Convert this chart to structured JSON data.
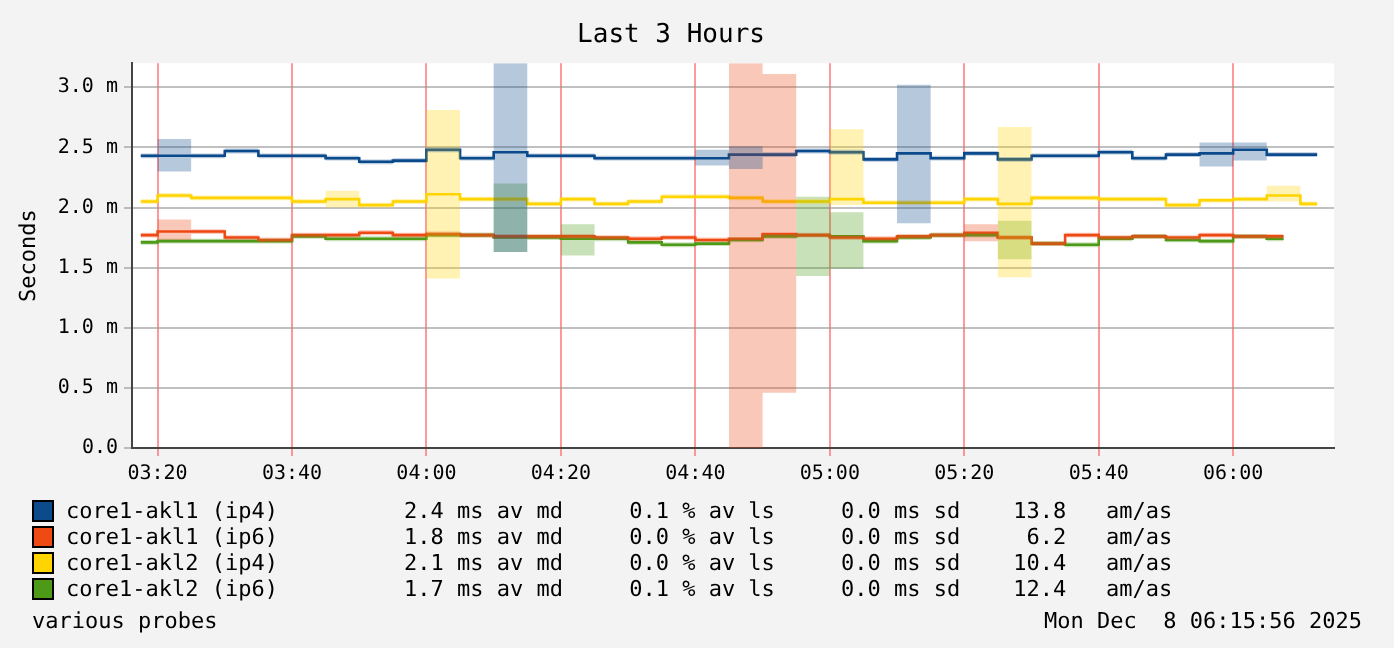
{
  "chart_data": {
    "type": "step",
    "title": "Last 3 Hours",
    "ylabel": "Seconds",
    "x": [
      3.2917,
      3.375,
      3.4583,
      3.5417,
      3.625,
      3.7083,
      3.7917,
      3.875,
      3.9583,
      4.0417,
      4.125,
      4.2083,
      4.2917,
      4.375,
      4.4583,
      4.5417,
      4.625,
      4.7083,
      4.7917,
      4.875,
      4.9583,
      5.0417,
      5.125,
      5.2083,
      5.2917,
      5.375,
      5.4583,
      5.5417,
      5.625,
      5.7083,
      5.7917,
      5.875,
      5.9583,
      6.0417,
      6.125,
      6.2083
    ],
    "xlim": [
      3.27,
      6.25
    ],
    "xticks": [
      {
        "value": 3.3333,
        "label": "03:20"
      },
      {
        "value": 3.6667,
        "label": "03:40"
      },
      {
        "value": 4,
        "label": "04:00"
      },
      {
        "value": 4.3333,
        "label": "04:20"
      },
      {
        "value": 4.6667,
        "label": "04:40"
      },
      {
        "value": 5,
        "label": "05:00"
      },
      {
        "value": 5.3333,
        "label": "05:20"
      },
      {
        "value": 5.6667,
        "label": "05:40"
      },
      {
        "value": 6,
        "label": "06:00"
      }
    ],
    "ylim": [
      0,
      3.2
    ],
    "yticks": [
      {
        "value": 0,
        "label": "0.0"
      },
      {
        "value": 0.5,
        "label": "0.5 m"
      },
      {
        "value": 1,
        "label": "1.0 m"
      },
      {
        "value": 1.5,
        "label": "1.5 m"
      },
      {
        "value": 2,
        "label": "2.0 m"
      },
      {
        "value": 2.5,
        "label": "2.5 m"
      },
      {
        "value": 3,
        "label": "3.0 m"
      }
    ],
    "grid": true,
    "marker": "none",
    "legend": "bottom",
    "series": [
      {
        "name": "core1-akl1 (ip4)",
        "color": "#0b4a8b",
        "values": [
          2.43,
          2.43,
          2.43,
          2.47,
          2.43,
          2.43,
          2.41,
          2.38,
          2.39,
          2.48,
          2.41,
          2.46,
          2.43,
          2.43,
          2.41,
          2.41,
          2.41,
          2.41,
          2.44,
          2.44,
          2.47,
          2.46,
          2.4,
          2.45,
          2.41,
          2.45,
          2.4,
          2.43,
          2.43,
          2.46,
          2.41,
          2.44,
          2.45,
          2.48,
          2.44,
          2.44
        ],
        "lower": [
          2.41,
          2.3,
          2.41,
          2.45,
          2.41,
          2.41,
          2.39,
          2.36,
          2.37,
          2.46,
          2.39,
          1.63,
          2.41,
          2.41,
          2.39,
          2.39,
          2.39,
          2.35,
          2.32,
          2.42,
          2.45,
          2.44,
          2.38,
          1.87,
          2.39,
          2.43,
          2.38,
          2.41,
          2.41,
          2.44,
          2.39,
          2.42,
          2.34,
          2.39,
          2.42,
          2.42
        ],
        "upper": [
          2.45,
          2.57,
          2.45,
          2.49,
          2.45,
          2.45,
          2.43,
          2.4,
          2.41,
          2.5,
          2.43,
          3.2,
          2.45,
          2.45,
          2.43,
          2.43,
          2.43,
          2.48,
          2.51,
          2.46,
          2.49,
          2.48,
          2.42,
          3.02,
          2.43,
          2.47,
          2.42,
          2.45,
          2.45,
          2.48,
          2.43,
          2.46,
          2.54,
          2.54,
          2.46,
          2.46
        ]
      },
      {
        "name": "core1-akl1 (ip6)",
        "color": "#f04a14",
        "values": [
          1.77,
          1.8,
          1.8,
          1.75,
          1.73,
          1.77,
          1.77,
          1.79,
          1.77,
          1.78,
          1.77,
          1.76,
          1.76,
          1.76,
          1.75,
          1.74,
          1.75,
          1.73,
          1.74,
          1.78,
          1.77,
          1.75,
          1.74,
          1.76,
          1.77,
          1.79,
          1.75,
          1.7,
          1.77,
          1.75,
          1.76,
          1.75,
          1.77,
          1.76,
          1.76,
          null
        ],
        "lower": [
          1.75,
          1.73,
          1.78,
          1.73,
          1.71,
          1.75,
          1.75,
          1.77,
          1.75,
          1.76,
          1.75,
          1.74,
          1.74,
          1.74,
          1.73,
          1.72,
          1.73,
          1.71,
          0,
          0.46,
          1.75,
          1.73,
          1.72,
          1.74,
          1.75,
          1.72,
          1.73,
          1.68,
          1.75,
          1.73,
          1.74,
          1.73,
          1.75,
          1.74,
          1.74,
          null
        ],
        "upper": [
          1.79,
          1.9,
          1.82,
          1.77,
          1.75,
          1.79,
          1.79,
          1.81,
          1.79,
          1.8,
          1.79,
          1.78,
          1.78,
          1.78,
          1.77,
          1.76,
          1.77,
          1.75,
          3.2,
          3.11,
          1.79,
          1.77,
          1.76,
          1.78,
          1.79,
          1.86,
          1.77,
          1.72,
          1.79,
          1.77,
          1.78,
          1.77,
          1.79,
          1.78,
          1.78,
          null
        ]
      },
      {
        "name": "core1-akl2 (ip4)",
        "color": "#ffd400",
        "values": [
          2.05,
          2.1,
          2.08,
          2.08,
          2.08,
          2.05,
          2.07,
          2.02,
          2.05,
          2.11,
          2.07,
          2.07,
          2.03,
          2.07,
          2.03,
          2.05,
          2.09,
          2.09,
          2.08,
          2.05,
          2.05,
          2.07,
          2.04,
          2.04,
          2.04,
          2.07,
          2.03,
          2.08,
          2.08,
          2.07,
          2.07,
          2.02,
          2.06,
          2.07,
          2.1,
          2.03
        ],
        "lower": [
          2.03,
          2.08,
          2.06,
          2.06,
          2.06,
          2.03,
          2.0,
          2.0,
          2.03,
          1.41,
          2.05,
          2.05,
          2.01,
          2.05,
          2.01,
          2.03,
          2.07,
          2.07,
          2.06,
          2.03,
          2.03,
          2.02,
          2.02,
          2.02,
          2.02,
          2.05,
          1.42,
          2.06,
          2.06,
          2.05,
          2.05,
          2.0,
          2.04,
          2.05,
          2.05,
          2.01
        ],
        "upper": [
          2.07,
          2.12,
          2.1,
          2.1,
          2.1,
          2.07,
          2.14,
          2.04,
          2.07,
          2.81,
          2.09,
          2.09,
          2.05,
          2.09,
          2.05,
          2.07,
          2.11,
          2.11,
          2.1,
          2.07,
          2.07,
          2.65,
          2.06,
          2.06,
          2.06,
          2.09,
          2.67,
          2.1,
          2.1,
          2.09,
          2.09,
          2.04,
          2.08,
          2.09,
          2.18,
          2.05
        ]
      },
      {
        "name": "core1-akl2 (ip6)",
        "color": "#4c9a18",
        "values": [
          1.71,
          1.72,
          1.72,
          1.72,
          1.72,
          1.76,
          1.74,
          1.74,
          1.74,
          1.77,
          1.77,
          1.75,
          1.75,
          1.74,
          1.74,
          1.71,
          1.69,
          1.7,
          1.73,
          1.76,
          1.77,
          1.76,
          1.72,
          1.75,
          1.77,
          1.77,
          1.75,
          1.7,
          1.69,
          1.74,
          1.76,
          1.73,
          1.72,
          1.76,
          1.74,
          null
        ],
        "lower": [
          1.69,
          1.7,
          1.7,
          1.7,
          1.7,
          1.74,
          1.72,
          1.72,
          1.72,
          1.75,
          1.75,
          1.63,
          1.73,
          1.6,
          1.72,
          1.69,
          1.67,
          1.68,
          1.71,
          1.74,
          1.43,
          1.49,
          1.7,
          1.73,
          1.75,
          1.75,
          1.57,
          1.68,
          1.67,
          1.72,
          1.74,
          1.71,
          1.7,
          1.74,
          1.72,
          null
        ],
        "upper": [
          1.73,
          1.74,
          1.74,
          1.74,
          1.74,
          1.78,
          1.76,
          1.76,
          1.76,
          1.79,
          1.79,
          2.2,
          1.77,
          1.86,
          1.76,
          1.73,
          1.71,
          1.72,
          1.75,
          1.78,
          2.09,
          1.96,
          1.74,
          1.77,
          1.79,
          1.79,
          1.89,
          1.72,
          1.71,
          1.76,
          1.78,
          1.75,
          1.74,
          1.78,
          1.76,
          null
        ]
      }
    ],
    "annotations": [
      "2.4 ms av md     0.1 % av ls     0.0 ms sd    13.8   am/as",
      "1.8 ms av md     0.0 % av ls     0.0 ms sd     6.2   am/as",
      "2.1 ms av md     0.0 % av ls     0.0 ms sd    10.4   am/as",
      "1.7 ms av md     0.1 % av ls     0.0 ms sd    12.4   am/as",
      "various probes",
      "Mon Dec  8 06:15:56 2025"
    ]
  }
}
